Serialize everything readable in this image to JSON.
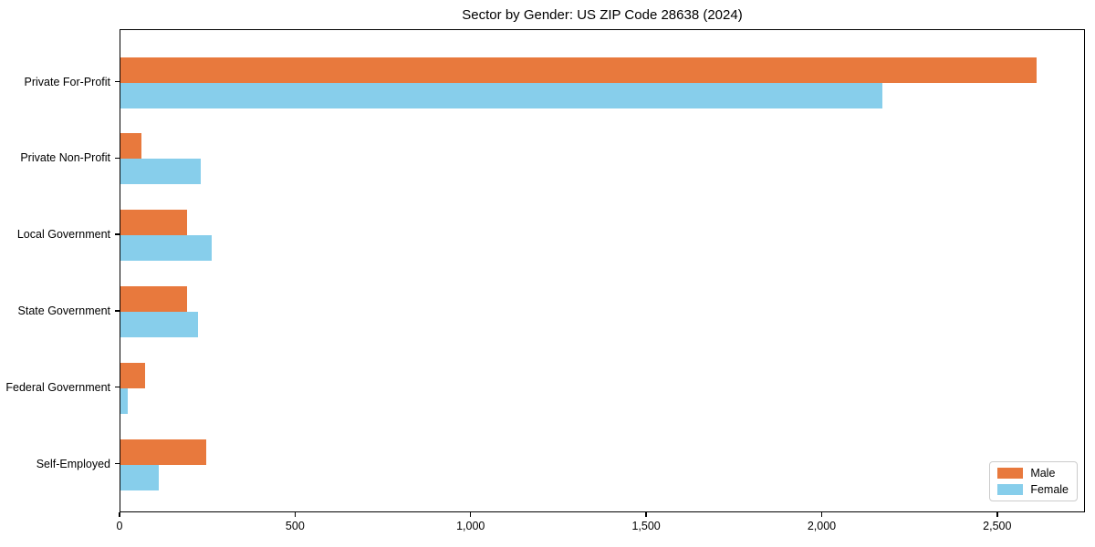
{
  "chart_data": {
    "type": "bar",
    "orientation": "horizontal",
    "title": "Sector by Gender: US ZIP Code 28638 (2024)",
    "categories": [
      "Private For-Profit",
      "Private Non-Profit",
      "Local Government",
      "State Government",
      "Federal Government",
      "Self-Employed"
    ],
    "series": [
      {
        "name": "Male",
        "color": "#E8793D",
        "values": [
          2610,
          60,
          190,
          190,
          70,
          245
        ]
      },
      {
        "name": "Female",
        "color": "#87CEEB",
        "values": [
          2170,
          230,
          260,
          220,
          20,
          110
        ]
      }
    ],
    "xlabel": "",
    "ylabel": "",
    "xlim": [
      0,
      2750
    ],
    "xticks": {
      "values": [
        0,
        500,
        1000,
        1500,
        2000,
        2500
      ],
      "labels": [
        "0",
        "500",
        "1,000",
        "1,500",
        "2,000",
        "2,500"
      ]
    },
    "grid": false,
    "legend_position": "lower right",
    "background_color": "#ffffff",
    "spine_color": "#000000"
  }
}
